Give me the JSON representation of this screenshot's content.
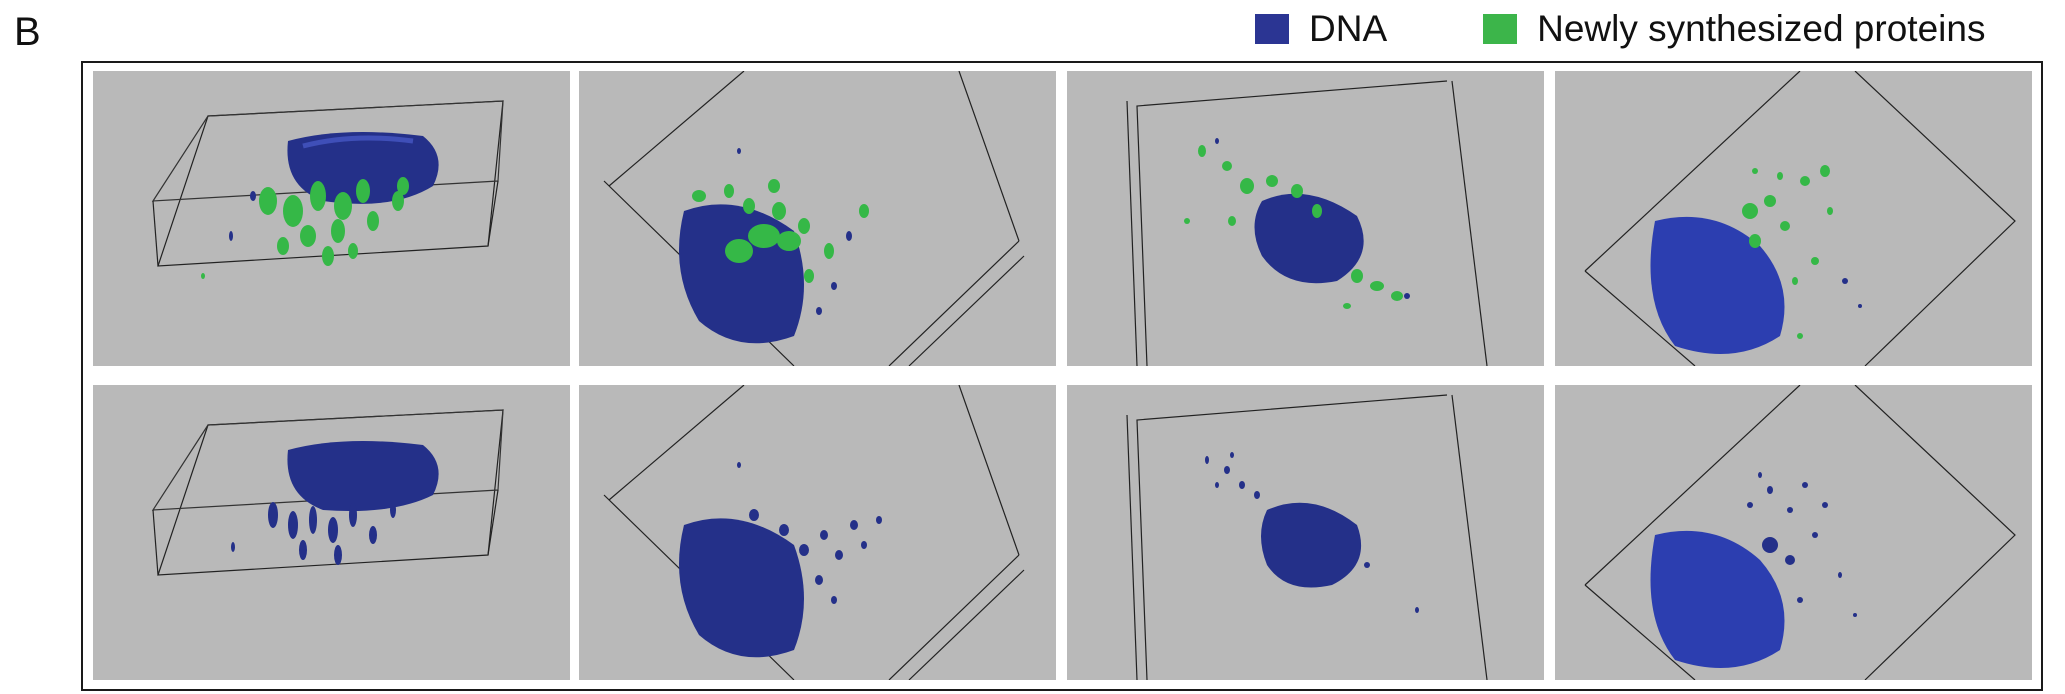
{
  "figure": {
    "panel_label": "B",
    "legend": [
      {
        "label": "DNA",
        "color": "#2b3593"
      },
      {
        "label": "Newly synthesized proteins",
        "color": "#3cb54a"
      }
    ],
    "colors": {
      "tile_background": "#b9b9b9",
      "dna": "#243089",
      "protein": "#35b847",
      "box_line": "#222222"
    },
    "grid": {
      "rows": 2,
      "columns": 4,
      "row_content": [
        "DNA + newly synthesized proteins",
        "DNA only"
      ]
    }
  }
}
